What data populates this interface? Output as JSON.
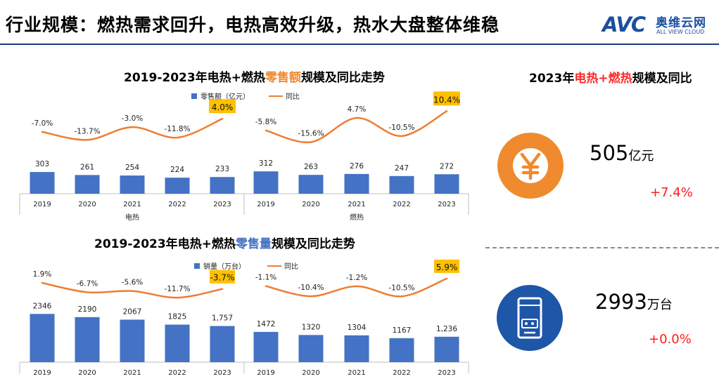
{
  "header": {
    "title": "行业规模：燃热需求回升，电热高效升级，热水大盘整体维稳",
    "logo_mark": "AVC",
    "logo_cn": "奥维云网",
    "logo_en": "ALL VIEW CLOUD"
  },
  "titles": {
    "top": {
      "pre": "2019-2023年电热+燃热",
      "hl": "零售额",
      "post": "规模及同比走势"
    },
    "bottom": {
      "pre": "2019-2023年电热+燃热",
      "hl": "零售量",
      "post": "规模及同比走势"
    },
    "right": {
      "pre": "2023年",
      "hl": "电热+燃热",
      "post": "规模及同比"
    }
  },
  "kpis": {
    "revenue": {
      "value": "505",
      "unit": "亿元",
      "change": "+7.4%",
      "icon": "yen-coin-icon"
    },
    "volume": {
      "value": "2993",
      "unit": "万台",
      "change": "+0.0%",
      "icon": "water-heater-icon"
    }
  },
  "colors": {
    "bar": "#4472c4",
    "line": "#ed7d31",
    "highlight_box": "#ffc000",
    "kpi_icon_orange": "#ef8a2e",
    "kpi_icon_blue": "#1e56a8",
    "positive_change": "#ff1a1a"
  },
  "chart_data": [
    {
      "type": "bar",
      "legend": [
        "零售额（亿元）",
        "同比"
      ],
      "groups": [
        "电热",
        "燃热"
      ],
      "categories": [
        "2019",
        "2020",
        "2021",
        "2022",
        "2023",
        "2019",
        "2020",
        "2021",
        "2022",
        "2023"
      ],
      "series": [
        {
          "name": "零售额（亿元）",
          "kind": "bar",
          "values": [
            303,
            261,
            254,
            224,
            233,
            312,
            263,
            276,
            247,
            272
          ],
          "labels": [
            "303",
            "261",
            "254",
            "224",
            "233",
            "312",
            "263",
            "276",
            "247",
            "272"
          ]
        },
        {
          "name": "同比",
          "kind": "line",
          "values": [
            -7.0,
            -13.7,
            -3.0,
            -11.8,
            4.0,
            -5.8,
            -15.6,
            4.7,
            -10.5,
            10.4
          ],
          "labels": [
            "-7.0%",
            "-13.7%",
            "-3.0%",
            "-11.8%",
            "4.0%",
            "-5.8%",
            "-15.6%",
            "4.7%",
            "-10.5%",
            "10.4%"
          ],
          "highlighted": [
            4,
            9
          ]
        }
      ]
    },
    {
      "type": "bar",
      "legend": [
        "销量（万台）",
        "同比"
      ],
      "groups": [
        "",
        ""
      ],
      "categories": [
        "2019",
        "2020",
        "2021",
        "2022",
        "2023",
        "2019",
        "2020",
        "2021",
        "2022",
        "2023"
      ],
      "series": [
        {
          "name": "销量（万台）",
          "kind": "bar",
          "values": [
            2346,
            2190,
            2067,
            1825,
            1757,
            1472,
            1320,
            1304,
            1167,
            1236
          ],
          "labels": [
            "2346",
            "2190",
            "2067",
            "1825",
            "1,757",
            "1472",
            "1320",
            "1304",
            "1167",
            "1,236"
          ]
        },
        {
          "name": "同比",
          "kind": "line",
          "values": [
            1.9,
            -6.7,
            -5.6,
            -11.7,
            -3.7,
            -1.1,
            -10.4,
            -1.2,
            -10.5,
            5.9
          ],
          "labels": [
            "1.9%",
            "-6.7%",
            "-5.6%",
            "-11.7%",
            "-3.7%",
            "-1.1%",
            "-10.4%",
            "-1.2%",
            "-10.5%",
            "5.9%"
          ],
          "highlighted": [
            4,
            9
          ]
        }
      ]
    }
  ]
}
